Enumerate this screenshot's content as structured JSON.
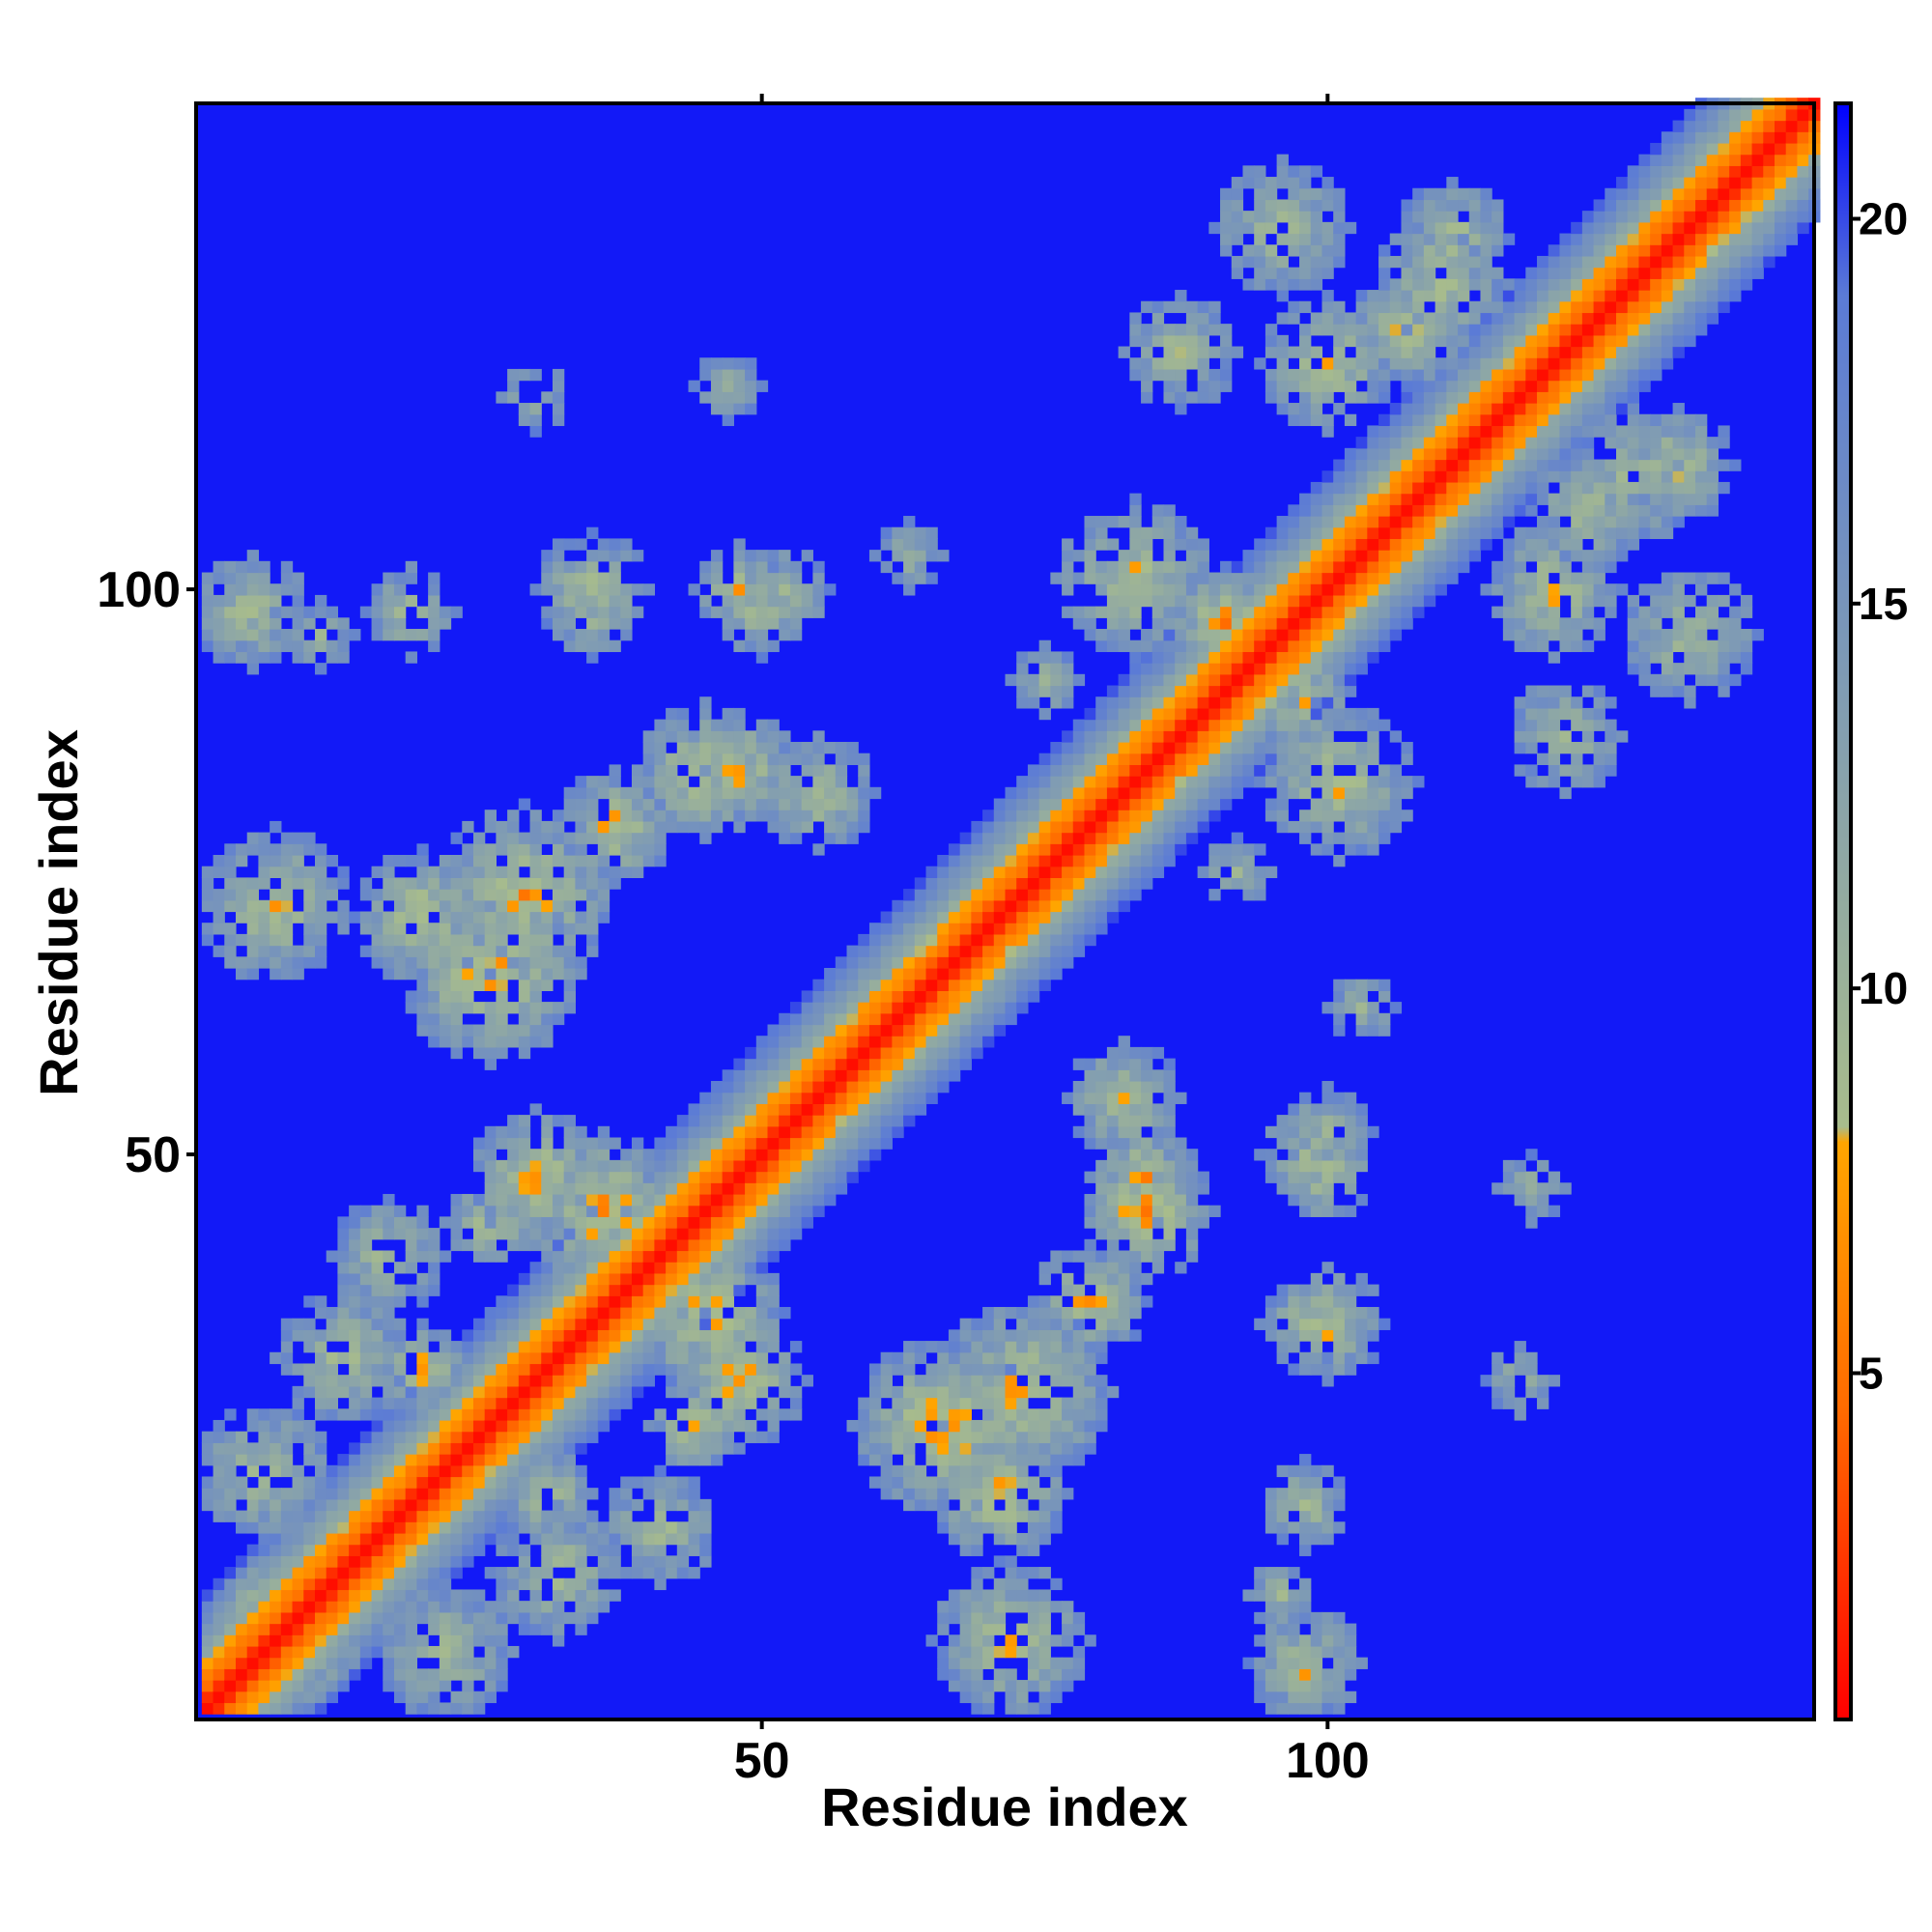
{
  "chart_data": {
    "type": "heatmap",
    "title": "",
    "xlabel": "Residue index",
    "ylabel": "Residue index",
    "n_residues": 143,
    "xlim": [
      1,
      143
    ],
    "ylim": [
      1,
      143
    ],
    "x_ticks": [
      50,
      100
    ],
    "y_ticks": [
      50,
      100
    ],
    "x_tick_labels": [
      "50",
      "100"
    ],
    "y_tick_labels": [
      "50",
      "100"
    ],
    "colorbar": {
      "range": [
        0.5,
        21.5
      ],
      "ticks": [
        5,
        10,
        15,
        20
      ],
      "tick_labels": [
        "5",
        "10",
        "15",
        "20"
      ],
      "gradient": [
        {
          "value": 0.5,
          "color": "#ff0000"
        },
        {
          "value": 4.5,
          "color": "#ff6a00"
        },
        {
          "value": 8.0,
          "color": "#ffa500"
        },
        {
          "value": 8.2,
          "color": "#a8bc8c"
        },
        {
          "value": 14,
          "color": "#7f9bb4"
        },
        {
          "value": 19,
          "color": "#5b7bd6"
        },
        {
          "value": 21.5,
          "color": "#0000ff"
        }
      ]
    },
    "background_value": 21,
    "diagonal_band": {
      "center": 1,
      "width_full": 4,
      "falloff": 6
    },
    "contact_clusters": [
      {
        "i": 8,
        "j": 8,
        "r": 7,
        "min": 5
      },
      {
        "i": 6,
        "j": 22,
        "r": 6,
        "min": 9
      },
      {
        "i": 13,
        "j": 32,
        "r": 6,
        "min": 9
      },
      {
        "i": 17,
        "j": 41,
        "r": 5,
        "min": 9
      },
      {
        "i": 20,
        "j": 31,
        "r": 4,
        "min": 7
      },
      {
        "i": 26,
        "j": 44,
        "r": 4,
        "min": 8
      },
      {
        "i": 30,
        "j": 48,
        "r": 6,
        "min": 7
      },
      {
        "i": 36,
        "j": 45,
        "r": 7,
        "min": 6
      },
      {
        "i": 29,
        "j": 73,
        "r": 8,
        "min": 7
      },
      {
        "i": 37,
        "j": 79,
        "r": 5,
        "min": 7
      },
      {
        "i": 45,
        "j": 84,
        "r": 6,
        "min": 6
      },
      {
        "i": 35,
        "j": 98,
        "r": 4,
        "min": 9
      },
      {
        "i": 19,
        "j": 98,
        "r": 4,
        "min": 9
      },
      {
        "i": 4,
        "j": 98,
        "r": 4,
        "min": 8
      },
      {
        "i": 50,
        "j": 98,
        "r": 4,
        "min": 9
      },
      {
        "i": 66,
        "j": 26,
        "r": 8,
        "min": 6
      },
      {
        "i": 71,
        "j": 20,
        "r": 6,
        "min": 7
      },
      {
        "i": 72,
        "j": 7,
        "r": 7,
        "min": 8
      },
      {
        "i": 84,
        "j": 48,
        "r": 5,
        "min": 7
      },
      {
        "i": 82,
        "j": 55,
        "r": 5,
        "min": 8
      },
      {
        "i": 100,
        "j": 35,
        "r": 5,
        "min": 8
      },
      {
        "i": 98,
        "j": 5,
        "r": 5,
        "min": 9
      },
      {
        "i": 100,
        "j": 48,
        "r": 4,
        "min": 8
      },
      {
        "i": 86,
        "j": 85,
        "r": 4,
        "min": 7
      },
      {
        "i": 91,
        "j": 97,
        "r": 5,
        "min": 6
      },
      {
        "i": 100,
        "j": 120,
        "r": 6,
        "min": 8
      },
      {
        "i": 107,
        "j": 123,
        "r": 5,
        "min": 8
      },
      {
        "i": 111,
        "j": 131,
        "r": 5,
        "min": 8
      },
      {
        "i": 101,
        "j": 83,
        "r": 7,
        "min": 8
      },
      {
        "i": 121,
        "j": 87,
        "r": 5,
        "min": 9
      },
      {
        "i": 132,
        "j": 96,
        "r": 6,
        "min": 9
      },
      {
        "i": 127,
        "j": 110,
        "r": 6,
        "min": 9
      },
      {
        "i": 52,
        "j": 100,
        "r": 4,
        "min": 10
      },
      {
        "i": 47,
        "j": 118,
        "r": 3,
        "min": 10
      },
      {
        "i": 30,
        "j": 117,
        "r": 3,
        "min": 10
      },
      {
        "i": 11,
        "j": 96,
        "r": 3,
        "min": 10
      },
      {
        "i": 75,
        "j": 92,
        "r": 3,
        "min": 10
      },
      {
        "i": 63,
        "j": 103,
        "r": 3,
        "min": 10
      }
    ]
  }
}
